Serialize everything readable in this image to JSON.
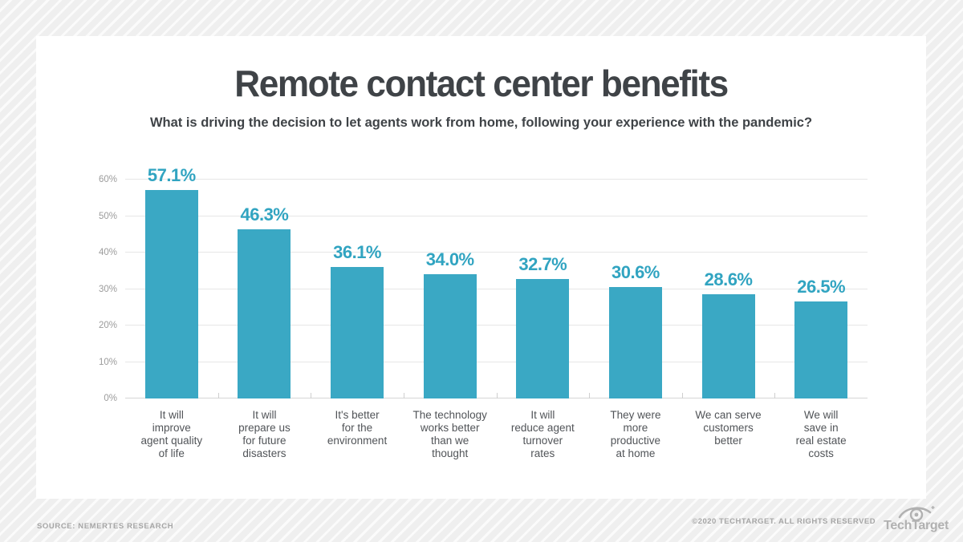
{
  "chart_data": {
    "type": "bar",
    "title": "Remote contact center benefits",
    "subtitle": "What is driving the decision to let agents work from home, following your experience with the pandemic?",
    "categories": [
      "It will\nimprove\nagent quality\nof life",
      "It will\nprepare us\nfor future\ndisasters",
      "It's better\nfor the\nenvironment",
      "The technology\nworks better\nthan we\nthought",
      "It will\nreduce agent\nturnover\nrates",
      "They were\nmore\nproductive\nat home",
      "We can serve\ncustomers\nbetter",
      "We will\nsave in\nreal estate\ncosts"
    ],
    "values": [
      57.1,
      46.3,
      36.1,
      34.0,
      32.7,
      30.6,
      28.6,
      26.5
    ],
    "value_labels": [
      "57.1%",
      "46.3%",
      "36.1%",
      "34.0%",
      "32.7%",
      "30.6%",
      "28.6%",
      "26.5%"
    ],
    "xlabel": "",
    "ylabel": "",
    "ylim": [
      0,
      60
    ],
    "ytick_values": [
      0,
      10,
      20,
      30,
      40,
      50,
      60
    ],
    "ytick_labels": [
      "0%",
      "10%",
      "20%",
      "30%",
      "40%",
      "50%",
      "60%"
    ],
    "grid": true,
    "legend": false,
    "bar_color": "#3aa8c4",
    "value_label_color": "#31a4c1",
    "grid_color": "#e7e7e7",
    "axis_color": "#d6d6d6"
  },
  "footer": {
    "source": "SOURCE: NEMERTES RESEARCH",
    "copyright": "©2020 TECHTARGET. ALL RIGHTS RESERVED",
    "logo_text": "TechTarget"
  }
}
